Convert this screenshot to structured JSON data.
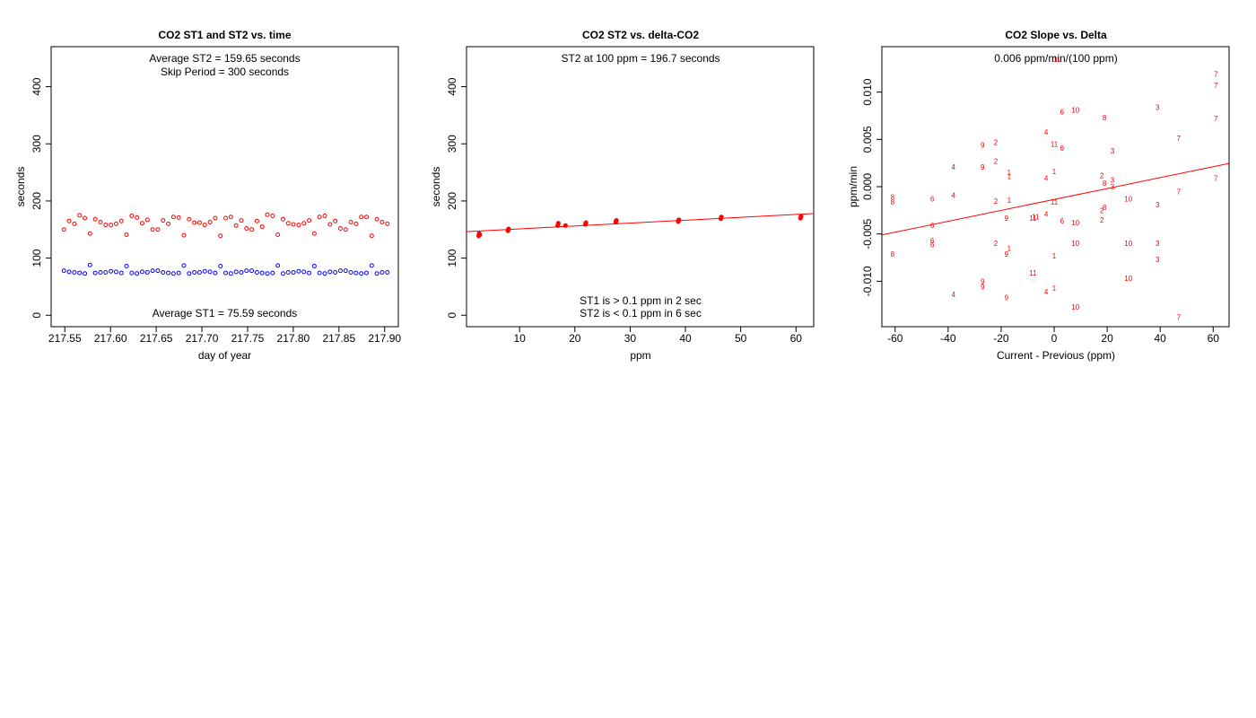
{
  "chart_data": [
    {
      "type": "scatter",
      "title": "CO2 ST1 and ST2 vs. time",
      "xlabel": "day of year",
      "ylabel": "seconds",
      "xlim": [
        217.535,
        217.915
      ],
      "ylim": [
        -20,
        470
      ],
      "xticks": [
        "217.55",
        "217.60",
        "217.65",
        "217.70",
        "217.75",
        "217.80",
        "217.85",
        "217.90"
      ],
      "yticks": [
        "0",
        "100",
        "200",
        "300",
        "400"
      ],
      "annotations": [
        "Average ST2 =  159.65  seconds",
        "Skip Period =  300  seconds",
        "Average ST1 =  75.59  seconds"
      ],
      "colors": {
        "st2": "#ff0000",
        "st1": "#0000ff"
      },
      "series": [
        {
          "values": [
            150,
            165,
            160,
            175,
            170,
            143,
            168,
            163,
            158,
            158,
            160,
            165,
            141,
            174,
            171,
            161,
            167,
            150,
            150,
            166,
            160,
            172,
            171,
            140,
            168,
            162,
            162,
            158,
            163,
            170,
            139,
            170,
            172,
            157,
            166,
            152,
            150,
            165,
            155,
            176,
            174,
            141,
            168,
            161,
            159,
            158,
            161,
            166,
            143,
            172,
            174,
            159,
            165,
            152,
            150,
            163,
            160,
            172,
            172,
            139,
            168,
            163,
            160
          ]
        },
        {
          "values": [
            78,
            76,
            75,
            74,
            73,
            88,
            74,
            75,
            75,
            77,
            76,
            74,
            86,
            74,
            73,
            76,
            75,
            78,
            78,
            75,
            74,
            73,
            74,
            87,
            73,
            75,
            75,
            77,
            76,
            74,
            86,
            74,
            73,
            76,
            75,
            78,
            78,
            75,
            74,
            73,
            74,
            87,
            73,
            75,
            75,
            77,
            76,
            74,
            86,
            74,
            73,
            76,
            75,
            78,
            78,
            75,
            74,
            73,
            74,
            87,
            73,
            75,
            75
          ]
        }
      ]
    },
    {
      "type": "scatter",
      "title": "CO2 ST2 vs. delta-CO2",
      "xlabel": "ppm",
      "ylabel": "seconds",
      "xlim": [
        0.4,
        63.2
      ],
      "ylim": [
        -20,
        470
      ],
      "xticks": [
        "10",
        "20",
        "30",
        "40",
        "50",
        "60"
      ],
      "yticks": [
        "0",
        "100",
        "200",
        "300",
        "400"
      ],
      "annotations": [
        "ST2 at 100 ppm =  196.7  seconds",
        "ST1 is > 0.1 ppm in 2 sec",
        "ST2 is < 0.1 ppm in 6 sec"
      ],
      "colors": {
        "points": "#ff0000",
        "fit": "#ff0000"
      },
      "points": {
        "x": [
          2.6,
          2.7,
          2.8,
          7.9,
          8.0,
          16.9,
          17.0,
          18.3,
          21.9,
          22.0,
          27.4,
          27.5,
          38.7,
          38.8,
          46.4,
          46.5,
          60.8,
          60.9
        ],
        "y": [
          139,
          143,
          141,
          148,
          151,
          157,
          161,
          157,
          159,
          162,
          163,
          166,
          164,
          167,
          169,
          172,
          170,
          173
        ]
      },
      "fit": {
        "intercept": 146.1,
        "slope": 0.506
      }
    },
    {
      "type": "scatter",
      "title": "CO2 Slope vs. Delta",
      "xlabel": "Current - Previous (ppm)",
      "ylabel": "ppm/min",
      "xlim": [
        -65,
        66
      ],
      "ylim": [
        -0.0148,
        0.0148
      ],
      "xticks": [
        "-60",
        "-40",
        "-20",
        "0",
        "20",
        "40",
        "60"
      ],
      "yticks": [
        "-0.010",
        "-0.005",
        "0.000",
        "0.005",
        "0.010"
      ],
      "annotations": [
        "0.006  ppm/min/(100 ppm)",
        "11"
      ],
      "colors": {
        "labels": "#ff0000",
        "fit": "#ff0000"
      },
      "fit": {
        "intercept": -0.00135,
        "slope": 5.77e-05
      },
      "points": [
        {
          "x": 61,
          "y": 0.0119,
          "label": "7"
        },
        {
          "x": 61,
          "y": 0.0107,
          "label": "7"
        },
        {
          "x": 61,
          "y": 0.0072,
          "label": "7"
        },
        {
          "x": 61,
          "y": 0.0009,
          "label": "7"
        },
        {
          "x": 47,
          "y": 0.0051,
          "label": "7"
        },
        {
          "x": 47,
          "y": -0.0005,
          "label": "7"
        },
        {
          "x": 47,
          "y": -0.0138,
          "label": "7"
        },
        {
          "x": 39,
          "y": 0.0084,
          "label": "3"
        },
        {
          "x": 39,
          "y": -0.0019,
          "label": "3"
        },
        {
          "x": 39,
          "y": -0.006,
          "label": "3"
        },
        {
          "x": 39,
          "y": -0.0077,
          "label": "3"
        },
        {
          "x": 22,
          "y": 0.0038,
          "label": "3"
        },
        {
          "x": 22,
          "y": 0.0007,
          "label": "3"
        },
        {
          "x": 22,
          "y": 0.0,
          "label": "3"
        },
        {
          "x": 28,
          "y": -0.0013,
          "label": "10"
        },
        {
          "x": 28,
          "y": -0.006,
          "label": "10"
        },
        {
          "x": 28,
          "y": -0.0097,
          "label": "10"
        },
        {
          "x": 8,
          "y": 0.0081,
          "label": "10"
        },
        {
          "x": 8,
          "y": -0.0038,
          "label": "10"
        },
        {
          "x": 8,
          "y": -0.006,
          "label": "10"
        },
        {
          "x": 8,
          "y": -0.0127,
          "label": "10"
        },
        {
          "x": 19,
          "y": 0.0073,
          "label": "8"
        },
        {
          "x": 19,
          "y": 0.0004,
          "label": "8"
        },
        {
          "x": 19,
          "y": -0.0022,
          "label": "8"
        },
        {
          "x": 18,
          "y": 0.0012,
          "label": "2"
        },
        {
          "x": 18,
          "y": -0.0025,
          "label": "2"
        },
        {
          "x": 18,
          "y": -0.0035,
          "label": "2"
        },
        {
          "x": 3,
          "y": 0.0079,
          "label": "6"
        },
        {
          "x": 3,
          "y": 0.0041,
          "label": "6"
        },
        {
          "x": 3,
          "y": -0.0036,
          "label": "6"
        },
        {
          "x": 0,
          "y": 0.0045,
          "label": "11"
        },
        {
          "x": 0,
          "y": -0.0016,
          "label": "11"
        },
        {
          "x": -8,
          "y": -0.0033,
          "label": "11"
        },
        {
          "x": -7,
          "y": -0.0032,
          "label": "11"
        },
        {
          "x": -8,
          "y": -0.0091,
          "label": "11"
        },
        {
          "x": -3,
          "y": 0.0058,
          "label": "4"
        },
        {
          "x": -3,
          "y": 0.0009,
          "label": "4"
        },
        {
          "x": -3,
          "y": -0.0029,
          "label": "4"
        },
        {
          "x": -3,
          "y": -0.0111,
          "label": "4"
        },
        {
          "x": -38,
          "y": 0.0021,
          "label": "4"
        },
        {
          "x": -38,
          "y": -0.0009,
          "label": "4"
        },
        {
          "x": -38,
          "y": -0.0114,
          "label": "4"
        },
        {
          "x": 0,
          "y": 0.0016,
          "label": "1"
        },
        {
          "x": 0,
          "y": -0.0073,
          "label": "1"
        },
        {
          "x": 0,
          "y": -0.0107,
          "label": "1"
        },
        {
          "x": -17,
          "y": 0.0015,
          "label": "1"
        },
        {
          "x": -17,
          "y": 0.0011,
          "label": "1"
        },
        {
          "x": -17,
          "y": -0.0014,
          "label": "1"
        },
        {
          "x": -17,
          "y": -0.0065,
          "label": "1"
        },
        {
          "x": -22,
          "y": 0.0047,
          "label": "2"
        },
        {
          "x": -22,
          "y": 0.0027,
          "label": "2"
        },
        {
          "x": -22,
          "y": -0.0015,
          "label": "2"
        },
        {
          "x": -22,
          "y": -0.006,
          "label": "2"
        },
        {
          "x": -27,
          "y": 0.0044,
          "label": "9"
        },
        {
          "x": -27,
          "y": 0.0021,
          "label": "9"
        },
        {
          "x": -18,
          "y": -0.0033,
          "label": "9"
        },
        {
          "x": -18,
          "y": -0.0071,
          "label": "9"
        },
        {
          "x": -27,
          "y": -0.01,
          "label": "9"
        },
        {
          "x": -27,
          "y": -0.0106,
          "label": "9"
        },
        {
          "x": -18,
          "y": -0.0117,
          "label": "9"
        },
        {
          "x": -46,
          "y": -0.0013,
          "label": "6"
        },
        {
          "x": -46,
          "y": -0.0041,
          "label": "6"
        },
        {
          "x": -46,
          "y": -0.0057,
          "label": "6"
        },
        {
          "x": -46,
          "y": -0.0061,
          "label": "6"
        },
        {
          "x": -61,
          "y": -0.0011,
          "label": "8"
        },
        {
          "x": -61,
          "y": -0.0016,
          "label": "8"
        },
        {
          "x": -61,
          "y": -0.0071,
          "label": "8"
        }
      ]
    }
  ]
}
